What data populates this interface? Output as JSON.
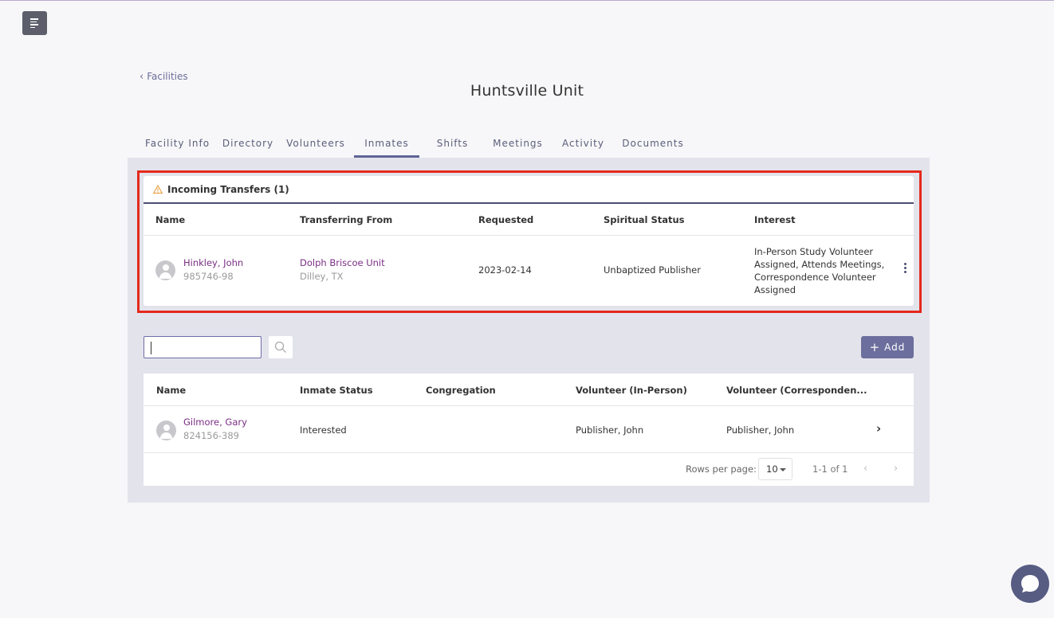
{
  "nav": {
    "back_label": "Facilities",
    "page_title": "Huntsville Unit"
  },
  "tabs": [
    {
      "label": "Facility Info"
    },
    {
      "label": "Directory"
    },
    {
      "label": "Volunteers"
    },
    {
      "label": "Inmates",
      "active": true
    },
    {
      "label": "Shifts"
    },
    {
      "label": "Meetings"
    },
    {
      "label": "Activity"
    },
    {
      "label": "Documents"
    }
  ],
  "transfers": {
    "title": "Incoming Transfers (1)",
    "columns": [
      "Name",
      "Transferring From",
      "Requested",
      "Spiritual Status",
      "Interest"
    ],
    "rows": [
      {
        "name": "Hinkley, John",
        "id": "985746-98",
        "from_unit": "Dolph Briscoe Unit",
        "from_location": "Dilley, TX",
        "requested": "2023-02-14",
        "spiritual_status": "Unbaptized Publisher",
        "interest_lines": [
          "In-Person Study Volunteer",
          "Assigned, Attends Meetings,",
          "Correspondence Volunteer",
          "Assigned"
        ]
      }
    ]
  },
  "toolbar": {
    "search_placeholder": "",
    "add_label": "Add"
  },
  "inmates": {
    "columns": [
      "Name",
      "Inmate Status",
      "Congregation",
      "Volunteer (In-Person)",
      "Volunteer (Corresponden..."
    ],
    "rows": [
      {
        "name": "Gilmore, Gary",
        "id": "824156-389",
        "status": "Interested",
        "congregation": "",
        "volunteer_in_person": "Publisher, John",
        "volunteer_correspondence": "Publisher, John"
      }
    ],
    "pagination": {
      "rows_per_page_label": "Rows per page:",
      "rows_per_page": "10",
      "range": "1-1 of 1"
    }
  },
  "colors": {
    "accent": "#6c6e9d",
    "link": "#7a2e84",
    "highlight": "#e4291c",
    "warning": "#e8952e"
  }
}
